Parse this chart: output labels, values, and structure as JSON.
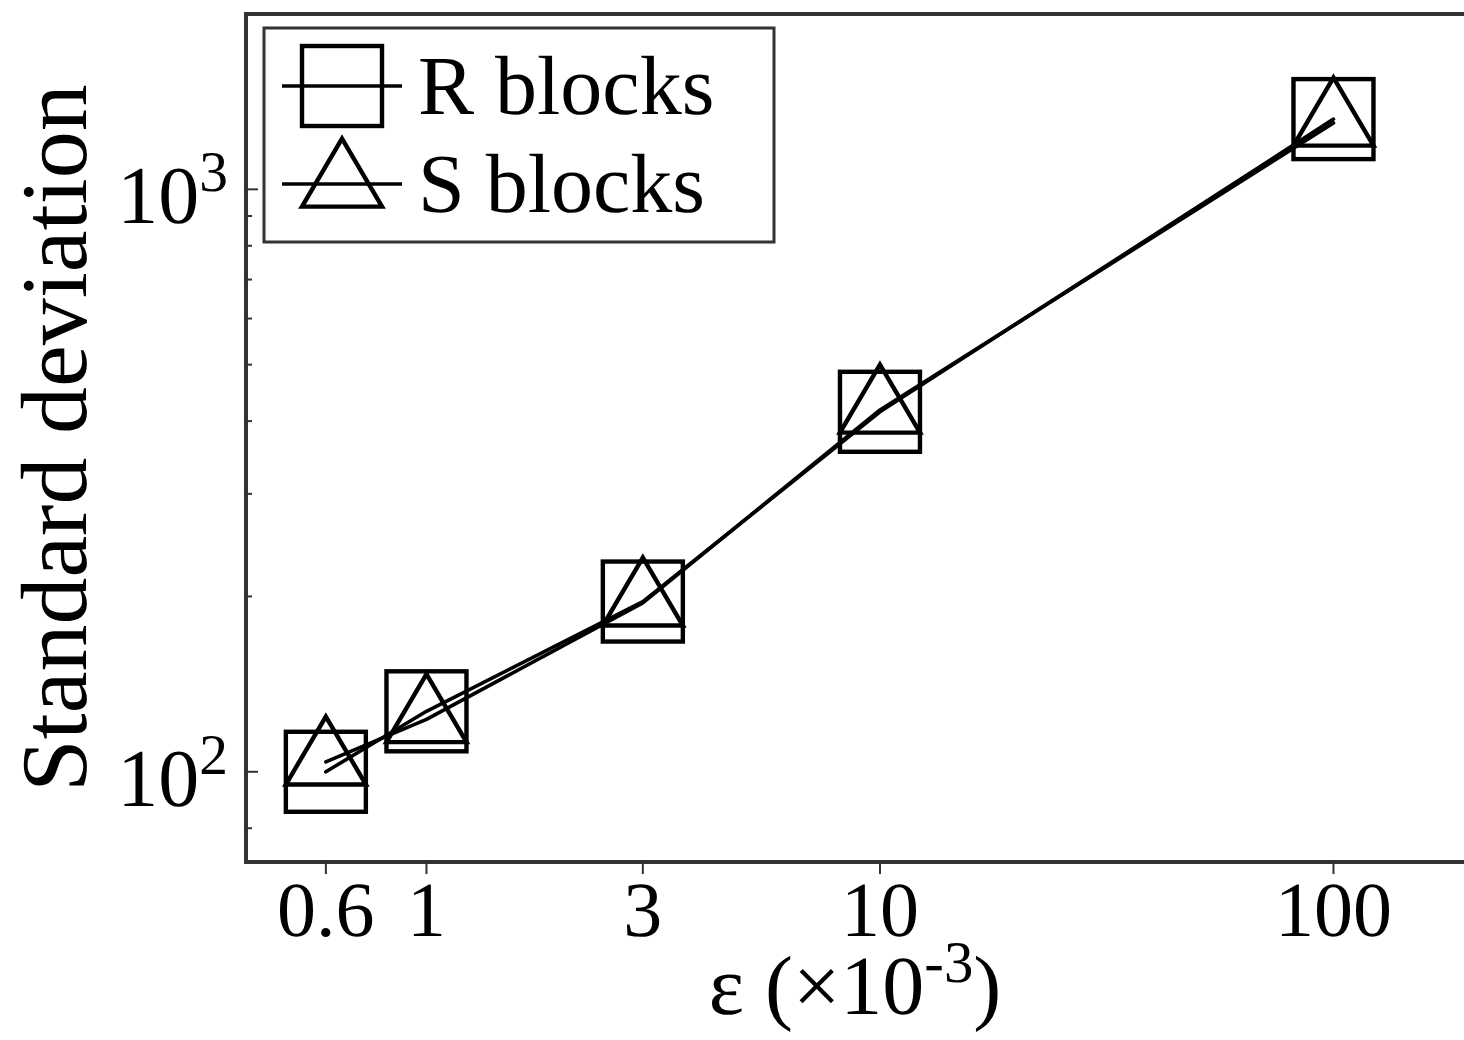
{
  "chart_data": {
    "type": "line",
    "xlabel": "ε (×10$^{-3}$)",
    "ylabel": "Standard deviation",
    "x": [
      0.6,
      1,
      3,
      10,
      100
    ],
    "series": [
      {
        "name": "R blocks",
        "color": "#000000",
        "marker": "square",
        "values": [
          100,
          127,
          196,
          415,
          1320
        ]
      },
      {
        "name": "S blocks",
        "color": "#000000",
        "marker": "triangle",
        "values": [
          104,
          123,
          195,
          418,
          1300
        ]
      }
    ],
    "log": "xy",
    "xlim": [
      0.4,
      200
    ],
    "ylim": [
      70,
      2000
    ],
    "xticks": [
      0.6,
      1,
      3,
      10,
      100
    ],
    "yticks": [
      {
        "value": 80,
        "label": null
      },
      {
        "value": 100,
        "label": "10$^{2}$"
      },
      {
        "value": 200,
        "label": null
      },
      {
        "value": 300,
        "label": null
      },
      {
        "value": 400,
        "label": null
      },
      {
        "value": 500,
        "label": null
      },
      {
        "value": 600,
        "label": null
      },
      {
        "value": 700,
        "label": null
      },
      {
        "value": 800,
        "label": null
      },
      {
        "value": 900,
        "label": null
      },
      {
        "value": 1000,
        "label": "10$^{3}$"
      }
    ],
    "legend": "top left"
  }
}
